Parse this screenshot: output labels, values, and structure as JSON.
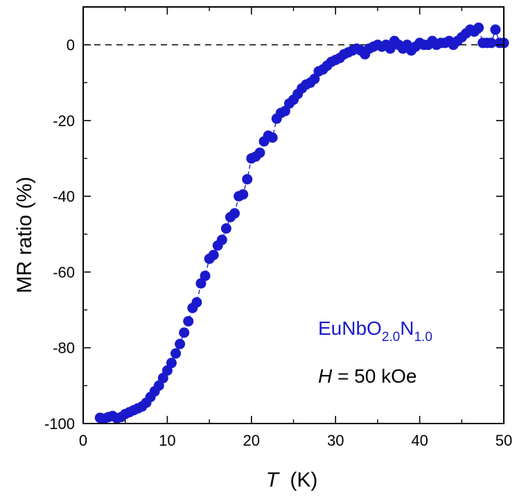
{
  "chart_data": {
    "type": "scatter",
    "xlabel": {
      "symbol": "T",
      "unit": "(K)"
    },
    "ylabel": "MR ratio (%)",
    "xlim": [
      0,
      50
    ],
    "ylim": [
      -100,
      10
    ],
    "xticks": [
      0,
      10,
      20,
      30,
      40,
      50
    ],
    "yticks": [
      -100,
      -80,
      -60,
      -40,
      -20,
      0
    ],
    "grid": false,
    "reference_line": {
      "y": 0,
      "style": "dashed"
    },
    "annotations": {
      "sample": {
        "base": "EuNbO",
        "sub1": "2.0",
        "mid": "N",
        "sub2": "1.0",
        "color": "#1a1acc"
      },
      "field": {
        "symbol": "H",
        "rest": " = 50 kOe"
      }
    },
    "series": [
      {
        "color": "#1a1acc",
        "marker": "circle",
        "connected": true,
        "points": [
          [
            2.0,
            -98.5
          ],
          [
            2.5,
            -98.7
          ],
          [
            3.0,
            -98.3
          ],
          [
            3.5,
            -98.0
          ],
          [
            4.0,
            -98.6
          ],
          [
            4.5,
            -98.3
          ],
          [
            5.0,
            -97.5
          ],
          [
            5.5,
            -97.0
          ],
          [
            6.0,
            -96.5
          ],
          [
            6.5,
            -96.0
          ],
          [
            7.0,
            -95.5
          ],
          [
            7.5,
            -94.5
          ],
          [
            8.0,
            -93.0
          ],
          [
            8.5,
            -91.5
          ],
          [
            9.0,
            -90.0
          ],
          [
            9.5,
            -88.0
          ],
          [
            10.0,
            -86.0
          ],
          [
            10.5,
            -84.0
          ],
          [
            11.0,
            -81.5
          ],
          [
            11.5,
            -79.0
          ],
          [
            12.0,
            -76.0
          ],
          [
            12.5,
            -73.0
          ],
          [
            13.0,
            -69.5
          ],
          [
            13.5,
            -68.0
          ],
          [
            14.0,
            -63.0
          ],
          [
            14.5,
            -61.0
          ],
          [
            15.0,
            -56.5
          ],
          [
            15.5,
            -55.5
          ],
          [
            16.0,
            -53.0
          ],
          [
            16.5,
            -51.5
          ],
          [
            17.0,
            -48.5
          ],
          [
            17.5,
            -45.5
          ],
          [
            18.0,
            -44.5
          ],
          [
            18.5,
            -40.0
          ],
          [
            19.0,
            -39.5
          ],
          [
            19.5,
            -35.5
          ],
          [
            20.0,
            -30.0
          ],
          [
            20.5,
            -29.5
          ],
          [
            21.0,
            -28.5
          ],
          [
            21.5,
            -25.5
          ],
          [
            22.0,
            -24.0
          ],
          [
            22.5,
            -24.5
          ],
          [
            23.0,
            -19.5
          ],
          [
            23.5,
            -18.0
          ],
          [
            24.0,
            -17.5
          ],
          [
            24.5,
            -15.5
          ],
          [
            25.0,
            -14.5
          ],
          [
            25.5,
            -13.0
          ],
          [
            26.0,
            -11.5
          ],
          [
            26.5,
            -10.5
          ],
          [
            27.0,
            -10.0
          ],
          [
            27.5,
            -9.0
          ],
          [
            28.0,
            -7.0
          ],
          [
            28.5,
            -6.5
          ],
          [
            29.0,
            -5.5
          ],
          [
            29.5,
            -4.5
          ],
          [
            30.0,
            -4.0
          ],
          [
            30.5,
            -3.5
          ],
          [
            31.0,
            -2.5
          ],
          [
            31.5,
            -2.0
          ],
          [
            32.0,
            -1.5
          ],
          [
            32.5,
            -1.0
          ],
          [
            33.0,
            -1.5
          ],
          [
            33.5,
            -2.5
          ],
          [
            34.0,
            -1.0
          ],
          [
            34.5,
            -0.5
          ],
          [
            35.0,
            0.0
          ],
          [
            35.5,
            -0.5
          ],
          [
            36.0,
            0.0
          ],
          [
            36.5,
            -1.0
          ],
          [
            37.0,
            1.0
          ],
          [
            37.5,
            0.0
          ],
          [
            38.0,
            -1.0
          ],
          [
            38.5,
            0.0
          ],
          [
            39.0,
            -1.5
          ],
          [
            39.5,
            -0.5
          ],
          [
            40.0,
            0.5
          ],
          [
            40.5,
            0.0
          ],
          [
            41.0,
            0.0
          ],
          [
            41.5,
            1.0
          ],
          [
            42.0,
            0.0
          ],
          [
            42.5,
            0.5
          ],
          [
            43.0,
            0.5
          ],
          [
            43.5,
            1.0
          ],
          [
            44.0,
            0.0
          ],
          [
            44.5,
            1.0
          ],
          [
            45.0,
            2.0
          ],
          [
            45.5,
            3.0
          ],
          [
            46.0,
            4.0
          ],
          [
            46.5,
            3.5
          ],
          [
            47.0,
            4.5
          ],
          [
            47.5,
            0.5
          ],
          [
            48.0,
            0.5
          ],
          [
            48.5,
            0.5
          ],
          [
            49.0,
            4.0
          ],
          [
            49.5,
            0.5
          ],
          [
            50.0,
            0.5
          ]
        ]
      }
    ]
  }
}
